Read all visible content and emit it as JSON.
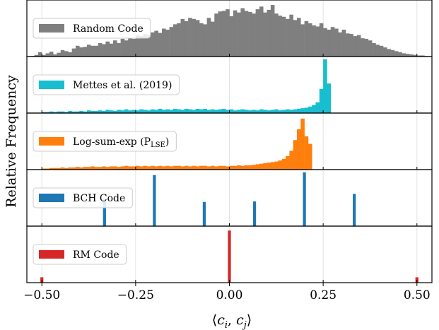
{
  "chart_data": {
    "type": "histogram",
    "layout": "five vertically stacked panels sharing the x axis",
    "xlabel": "⟨c_i, c_j⟩",
    "ylabel": "Relative Frequency",
    "xlim": [
      -0.54,
      0.54
    ],
    "x_ticks": [
      -0.5,
      -0.25,
      0.0,
      0.25,
      0.5
    ],
    "x_tick_labels": [
      "−0.50",
      "−0.25",
      "0.00",
      "0.25",
      "0.50"
    ],
    "grid": "vertical lines at x ticks",
    "legend_placement": "left, inside each panel",
    "panels": [
      {
        "name": "Random Code",
        "color": "#7f7f7f",
        "kind": "dense histogram",
        "bin_width": 0.01,
        "bin_start": -0.53,
        "ylim": [
          0,
          1.0
        ],
        "values": [
          0.01,
          0.03,
          0.08,
          0.03,
          0.06,
          0.09,
          0.04,
          0.07,
          0.12,
          0.1,
          0.08,
          0.15,
          0.2,
          0.17,
          0.18,
          0.22,
          0.2,
          0.2,
          0.25,
          0.23,
          0.28,
          0.24,
          0.3,
          0.25,
          0.33,
          0.3,
          0.35,
          0.33,
          0.4,
          0.38,
          0.42,
          0.4,
          0.45,
          0.48,
          0.44,
          0.52,
          0.5,
          0.55,
          0.6,
          0.62,
          0.7,
          0.66,
          0.72,
          0.7,
          0.68,
          0.62,
          0.6,
          0.72,
          0.65,
          0.8,
          0.84,
          0.85,
          0.88,
          0.75,
          0.86,
          0.82,
          0.9,
          0.85,
          0.83,
          0.8,
          0.88,
          0.93,
          0.82,
          0.87,
          0.96,
          0.8,
          0.76,
          0.74,
          0.7,
          0.78,
          0.68,
          0.72,
          0.6,
          0.66,
          0.62,
          0.58,
          0.56,
          0.62,
          0.53,
          0.5,
          0.55,
          0.52,
          0.45,
          0.5,
          0.43,
          0.42,
          0.38,
          0.4,
          0.34,
          0.33,
          0.3,
          0.25,
          0.22,
          0.2,
          0.17,
          0.14,
          0.12,
          0.1,
          0.08,
          0.06,
          0.05,
          0.04,
          0.03,
          0.02,
          0.02,
          0.01
        ]
      },
      {
        "name": "Mettes et al. (2019)",
        "color": "#17becf",
        "kind": "histogram",
        "bin_width": 0.01,
        "bin_start": -0.5,
        "ylim": [
          0,
          1.0
        ],
        "values": [
          0.02,
          0.02,
          0.03,
          0.02,
          0.03,
          0.03,
          0.02,
          0.04,
          0.03,
          0.03,
          0.04,
          0.03,
          0.05,
          0.04,
          0.04,
          0.05,
          0.04,
          0.06,
          0.05,
          0.04,
          0.06,
          0.05,
          0.07,
          0.05,
          0.06,
          0.05,
          0.07,
          0.06,
          0.05,
          0.07,
          0.06,
          0.08,
          0.06,
          0.07,
          0.06,
          0.08,
          0.07,
          0.06,
          0.08,
          0.07,
          0.06,
          0.08,
          0.07,
          0.08,
          0.06,
          0.07,
          0.06,
          0.07,
          0.08,
          0.06,
          0.07,
          0.05,
          0.06,
          0.07,
          0.06,
          0.05,
          0.06,
          0.05,
          0.07,
          0.06,
          0.05,
          0.06,
          0.07,
          0.05,
          0.06,
          0.07,
          0.06,
          0.07,
          0.08,
          0.09,
          0.1,
          0.12,
          0.15,
          0.2,
          0.45,
          1.0,
          0.55
        ]
      },
      {
        "name": "Log-sum-exp (P",
        "name_subscript": "LSE",
        "name_suffix": ")",
        "color": "#ff7f0e",
        "kind": "histogram",
        "bin_width": 0.01,
        "bin_start": -0.5,
        "ylim": [
          0,
          1.0
        ],
        "values": [
          0.02,
          0.02,
          0.03,
          0.03,
          0.03,
          0.04,
          0.03,
          0.04,
          0.04,
          0.05,
          0.04,
          0.05,
          0.05,
          0.06,
          0.05,
          0.05,
          0.06,
          0.05,
          0.06,
          0.06,
          0.05,
          0.06,
          0.07,
          0.06,
          0.06,
          0.07,
          0.06,
          0.07,
          0.06,
          0.07,
          0.06,
          0.07,
          0.06,
          0.07,
          0.06,
          0.07,
          0.07,
          0.06,
          0.07,
          0.06,
          0.07,
          0.06,
          0.07,
          0.07,
          0.06,
          0.07,
          0.06,
          0.07,
          0.07,
          0.06,
          0.07,
          0.07,
          0.08,
          0.07,
          0.08,
          0.08,
          0.09,
          0.1,
          0.11,
          0.12,
          0.13,
          0.14,
          0.15,
          0.17,
          0.2,
          0.25,
          0.35,
          0.55,
          0.75,
          0.95,
          0.62,
          0.48
        ]
      },
      {
        "name": "BCH Code",
        "color": "#1f77b4",
        "kind": "spikes",
        "bar_width": 0.008,
        "ylim": [
          0,
          1.0
        ],
        "points": [
          {
            "x": -0.333,
            "y": 0.5
          },
          {
            "x": -0.2,
            "y": 0.95
          },
          {
            "x": -0.067,
            "y": 0.45
          },
          {
            "x": 0.067,
            "y": 0.46
          },
          {
            "x": 0.2,
            "y": 1.0
          },
          {
            "x": 0.333,
            "y": 0.6
          }
        ]
      },
      {
        "name": "RM Code",
        "color": "#d62728",
        "kind": "spikes",
        "bar_width": 0.008,
        "ylim": [
          0,
          1.0
        ],
        "points": [
          {
            "x": -0.5,
            "y": 0.1
          },
          {
            "x": 0.0,
            "y": 0.97
          },
          {
            "x": 0.5,
            "y": 0.1
          }
        ]
      }
    ]
  }
}
